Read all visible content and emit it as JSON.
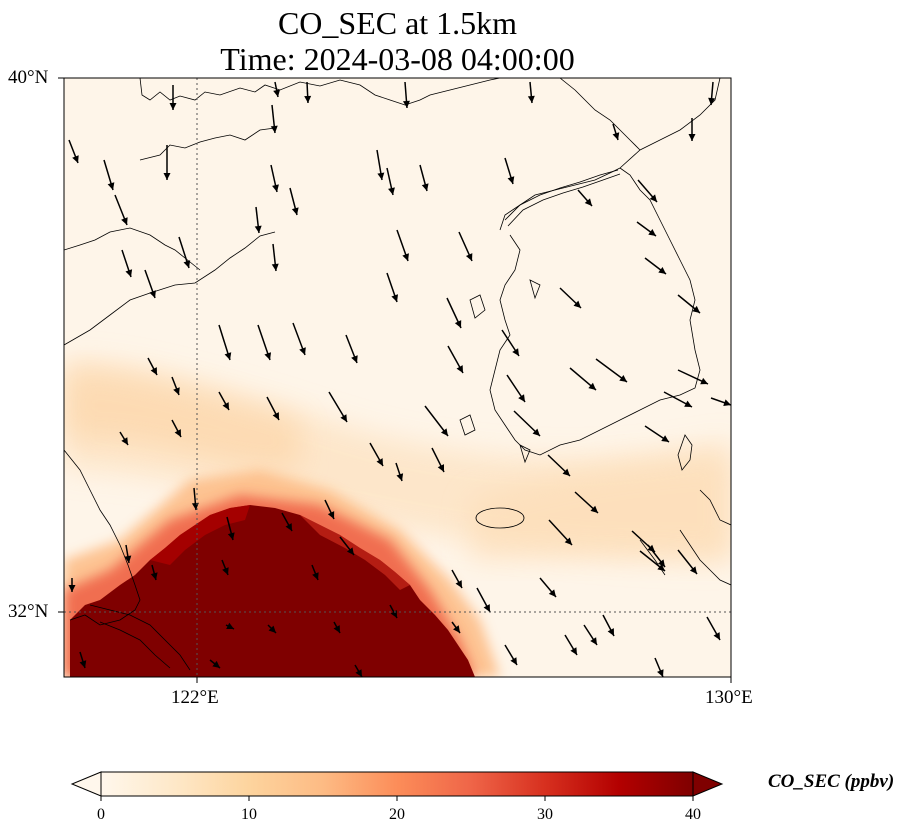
{
  "title": {
    "line1": "CO_SEC at 1.5km",
    "line2": "Time: 2024-03-08 04:00:00"
  },
  "map": {
    "lon_range": [
      119,
      130
    ],
    "lat_range": [
      30.9,
      40
    ],
    "lat_ticks": [
      {
        "label": "40°N",
        "value": 40
      },
      {
        "label": "32°N",
        "value": 32
      }
    ],
    "lon_ticks": [
      {
        "label": "122°E",
        "value": 122
      },
      {
        "label": "130°E",
        "value": 130
      }
    ],
    "gridlines": "dotted",
    "variable": "CO_SEC",
    "level": "1.5km",
    "wind_vectors": "arrows pointing southward to south-eastward",
    "plume": "high CO_SEC (>=40 ppbv) over south-west of domain, lighter band extending east"
  },
  "colorbar": {
    "label": "CO_SEC (ppbv)",
    "colormap": "OrRd",
    "colors": [
      "#fff7ec",
      "#fee8c8",
      "#fdd49e",
      "#fdbb84",
      "#fc8d59",
      "#ef6548",
      "#d7301f",
      "#b30000",
      "#7f0000"
    ],
    "ticks": [
      "0",
      "10",
      "20",
      "30",
      "40"
    ],
    "range": [
      0,
      40
    ],
    "extend": "both"
  },
  "colors": {
    "background": "#fef4e8",
    "plume_max": "#7f0000",
    "coast": "#000000"
  }
}
